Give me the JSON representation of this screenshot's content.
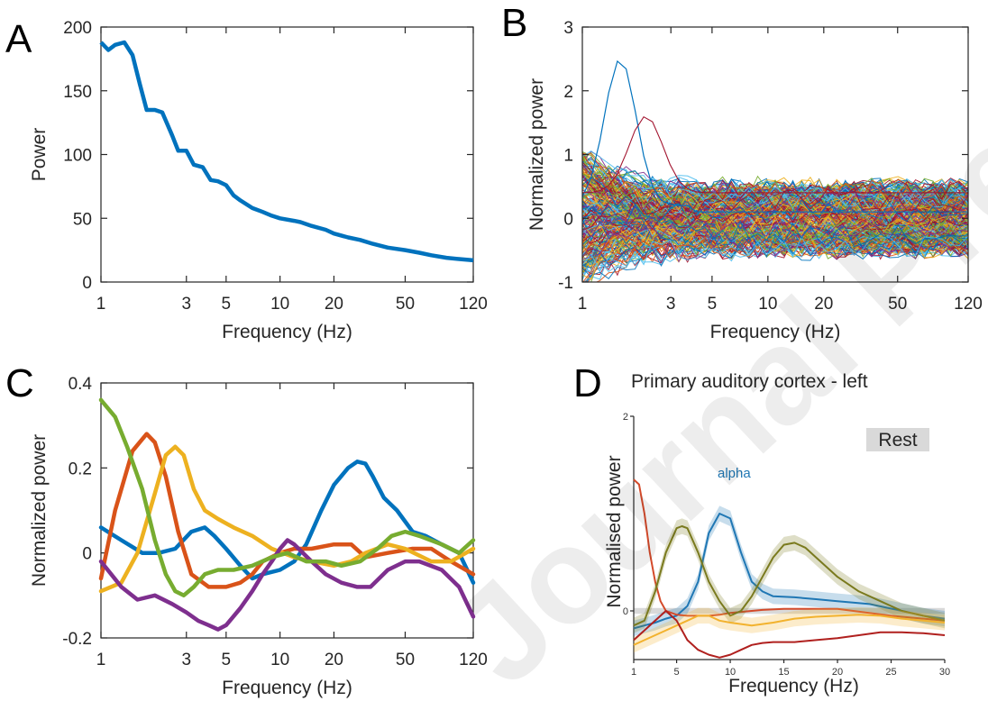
{
  "watermark": "Journal Pre-proof",
  "chart_data": [
    {
      "panel": "A",
      "type": "line",
      "xscale": "log",
      "xlabel": "Frequency (Hz)",
      "ylabel": "Power",
      "xlim": [
        1,
        120
      ],
      "ylim": [
        0,
        200
      ],
      "xticks": [
        "1",
        "3",
        "5",
        "10",
        "20",
        "50",
        "120"
      ],
      "yticks": [
        "0",
        "50",
        "100",
        "150",
        "200"
      ],
      "colors": [
        "#0072BD"
      ],
      "series": [
        {
          "x": [
            1,
            1.1,
            1.2,
            1.35,
            1.5,
            1.65,
            1.8,
            2.0,
            2.2,
            2.5,
            2.7,
            3.0,
            3.3,
            3.7,
            4.1,
            4.5,
            5,
            5.5,
            6,
            7,
            8,
            9,
            10,
            12,
            13,
            15,
            18,
            20,
            24,
            28,
            33,
            40,
            50,
            60,
            70,
            85,
            100,
            120
          ],
          "y": [
            188,
            182,
            186,
            188,
            178,
            155,
            135,
            135,
            133,
            115,
            103,
            103,
            92,
            90,
            80,
            79,
            76,
            68,
            64,
            58,
            55,
            52,
            50,
            48,
            47,
            44,
            41,
            38,
            35,
            33,
            30,
            27,
            25,
            23,
            21,
            19,
            18,
            17
          ]
        }
      ]
    },
    {
      "panel": "B",
      "type": "line",
      "xscale": "log",
      "xlabel": "Frequency (Hz)",
      "ylabel": "Normalized power",
      "xlim": [
        1,
        120
      ],
      "ylim": [
        -1,
        3
      ],
      "xticks": [
        "1",
        "3",
        "5",
        "10",
        "20",
        "50",
        "120"
      ],
      "yticks": [
        "-1",
        "0",
        "1",
        "2",
        "3"
      ],
      "colors": [
        "#0072BD",
        "#D95319",
        "#EDB120",
        "#7E2F8E",
        "#77AC30",
        "#4DBEEE",
        "#A2142F"
      ],
      "note": "many overlapping individual spectra (approximate)"
    },
    {
      "panel": "C",
      "type": "line",
      "xscale": "log",
      "xlabel": "Frequency (Hz)",
      "ylabel": "Normalized power",
      "xlim": [
        1,
        120
      ],
      "ylim": [
        -0.2,
        0.4
      ],
      "xticks": [
        "1",
        "3",
        "5",
        "10",
        "20",
        "50",
        "120"
      ],
      "yticks": [
        "-0.2",
        "0",
        "0.2",
        "0.4"
      ],
      "series": [
        {
          "color": "#0072BD",
          "x": [
            1,
            1.3,
            1.7,
            2.1,
            2.6,
            3.2,
            3.8,
            4.3,
            5,
            6,
            7,
            8,
            10,
            12,
            14,
            17,
            20,
            24,
            27,
            30,
            33,
            38,
            45,
            55,
            65,
            80,
            100,
            120
          ],
          "y": [
            0.06,
            0.03,
            0.0,
            0.0,
            0.01,
            0.05,
            0.06,
            0.04,
            0.01,
            -0.03,
            -0.06,
            -0.05,
            -0.04,
            -0.02,
            0.02,
            0.1,
            0.16,
            0.2,
            0.215,
            0.21,
            0.18,
            0.13,
            0.1,
            0.05,
            0.04,
            0.02,
            0.0,
            -0.07
          ]
        },
        {
          "color": "#D95319",
          "x": [
            1,
            1.2,
            1.5,
            1.8,
            2.0,
            2.3,
            2.7,
            3.2,
            4,
            5,
            6,
            7,
            8,
            10,
            12,
            15,
            20,
            25,
            30,
            40,
            55,
            70,
            90,
            120
          ],
          "y": [
            -0.06,
            0.1,
            0.24,
            0.28,
            0.26,
            0.18,
            0.05,
            -0.05,
            -0.08,
            -0.08,
            -0.07,
            -0.05,
            -0.02,
            0.0,
            0.01,
            0.01,
            0.02,
            0.02,
            -0.01,
            0.0,
            0.01,
            0.01,
            -0.02,
            -0.05
          ]
        },
        {
          "color": "#EDB120",
          "x": [
            1,
            1.3,
            1.6,
            2.0,
            2.3,
            2.6,
            2.9,
            3.3,
            3.8,
            4.5,
            5.5,
            7,
            9,
            12,
            15,
            20,
            25,
            30,
            40,
            50,
            70,
            90,
            120
          ],
          "y": [
            -0.09,
            -0.07,
            0.0,
            0.14,
            0.23,
            0.25,
            0.23,
            0.15,
            0.1,
            0.08,
            0.06,
            0.04,
            0.01,
            -0.01,
            -0.02,
            -0.03,
            -0.02,
            0.0,
            0.02,
            0.01,
            -0.02,
            -0.02,
            0.01
          ]
        },
        {
          "color": "#7E2F8E",
          "x": [
            1,
            1.3,
            1.6,
            2.0,
            2.5,
            3.0,
            3.5,
            4.0,
            4.5,
            5,
            6,
            7,
            8,
            9,
            10,
            11,
            12,
            15,
            18,
            22,
            27,
            32,
            40,
            50,
            60,
            80,
            100,
            120
          ],
          "y": [
            -0.02,
            -0.08,
            -0.11,
            -0.1,
            -0.12,
            -0.14,
            -0.16,
            -0.17,
            -0.18,
            -0.17,
            -0.13,
            -0.09,
            -0.05,
            -0.02,
            0.01,
            0.03,
            0.02,
            -0.02,
            -0.05,
            -0.07,
            -0.08,
            -0.08,
            -0.04,
            -0.02,
            -0.02,
            -0.04,
            -0.08,
            -0.15
          ]
        },
        {
          "color": "#77AC30",
          "x": [
            1,
            1.2,
            1.4,
            1.7,
            2.0,
            2.3,
            2.6,
            2.9,
            3.3,
            3.8,
            4.5,
            5.5,
            7,
            9,
            11,
            14,
            18,
            22,
            28,
            35,
            42,
            50,
            60,
            80,
            100,
            120
          ],
          "y": [
            0.36,
            0.32,
            0.25,
            0.15,
            0.03,
            -0.05,
            -0.09,
            -0.1,
            -0.08,
            -0.05,
            -0.04,
            -0.04,
            -0.03,
            -0.01,
            0.0,
            -0.02,
            -0.02,
            -0.03,
            -0.02,
            0.01,
            0.04,
            0.05,
            0.04,
            0.02,
            0.0,
            0.03
          ]
        }
      ]
    },
    {
      "panel": "D",
      "type": "line",
      "title": "Primary auditory cortex - left",
      "xlabel": "Frequency (Hz)",
      "ylabel": "Normalised power",
      "xlim": [
        1,
        30
      ],
      "ylim": [
        -0.5,
        2
      ],
      "xticks": [
        "1",
        "5",
        "10",
        "15",
        "20",
        "25",
        "30"
      ],
      "yticks": [
        "0",
        "2"
      ],
      "legend": "Rest",
      "annotation": "alpha",
      "series": [
        {
          "color": "#1F77B4",
          "band": true,
          "x": [
            1,
            2,
            3,
            4,
            5,
            6,
            7,
            8,
            9,
            10,
            11,
            12,
            13,
            14,
            16,
            18,
            20,
            23,
            26,
            28,
            30
          ],
          "y": [
            -0.18,
            -0.15,
            -0.12,
            -0.08,
            -0.05,
            0.05,
            0.3,
            0.8,
            1.0,
            0.95,
            0.6,
            0.3,
            0.2,
            0.15,
            0.14,
            0.12,
            0.1,
            0.07,
            0.0,
            -0.05,
            -0.08
          ]
        },
        {
          "color": "#D44A2A",
          "x": [
            1,
            1.5,
            2,
            2.5,
            3,
            3.5,
            4,
            5,
            6,
            7,
            8,
            9,
            10,
            11,
            12,
            13,
            15,
            20,
            25,
            30
          ],
          "y": [
            1.35,
            1.3,
            1.0,
            0.6,
            0.3,
            0.1,
            0.0,
            -0.04,
            -0.05,
            -0.05,
            -0.05,
            -0.04,
            -0.02,
            -0.01,
            0.0,
            0.01,
            0.02,
            0.02,
            -0.05,
            -0.1
          ]
        },
        {
          "color": "#7A7A1E",
          "band": true,
          "x": [
            1,
            2,
            3,
            4,
            5,
            5.5,
            6,
            7,
            8,
            9,
            10,
            11,
            12,
            13,
            14,
            15,
            16,
            17,
            18,
            20,
            22,
            24,
            26,
            28,
            30
          ],
          "y": [
            -0.15,
            -0.1,
            0.2,
            0.6,
            0.85,
            0.87,
            0.85,
            0.6,
            0.3,
            0.1,
            -0.05,
            0.0,
            0.15,
            0.35,
            0.55,
            0.68,
            0.7,
            0.65,
            0.55,
            0.35,
            0.2,
            0.1,
            0.0,
            -0.05,
            -0.1
          ]
        },
        {
          "color": "#F2B22E",
          "band": true,
          "x": [
            1,
            2,
            3,
            4,
            5,
            6,
            7,
            8,
            9,
            10,
            12,
            14,
            16,
            18,
            20,
            22,
            24,
            26,
            28,
            30
          ],
          "y": [
            -0.35,
            -0.3,
            -0.25,
            -0.2,
            -0.15,
            -0.1,
            -0.05,
            -0.05,
            -0.1,
            -0.12,
            -0.15,
            -0.12,
            -0.08,
            -0.06,
            -0.05,
            -0.04,
            -0.05,
            -0.08,
            -0.1,
            -0.12
          ]
        },
        {
          "color": "#B0201E",
          "x": [
            1,
            2,
            3,
            4,
            5,
            6,
            7,
            8,
            9,
            10,
            11,
            12,
            13,
            14,
            16,
            18,
            20,
            22,
            24,
            26,
            28,
            30
          ],
          "y": [
            -0.3,
            -0.2,
            -0.1,
            0.0,
            -0.1,
            -0.3,
            -0.4,
            -0.45,
            -0.48,
            -0.45,
            -0.4,
            -0.35,
            -0.33,
            -0.32,
            -0.32,
            -0.3,
            -0.28,
            -0.25,
            -0.22,
            -0.22,
            -0.23,
            -0.25
          ]
        }
      ]
    }
  ]
}
